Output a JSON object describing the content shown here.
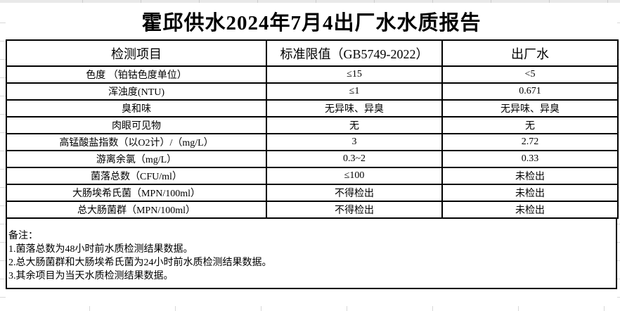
{
  "title": "霍邱供水2024年7月4出厂水水质报告",
  "table": {
    "columns": [
      "检测项目",
      "标准限值（GB5749-2022）",
      "出厂水"
    ],
    "rows": [
      [
        "色度 （铂钴色度单位）",
        "≤15",
        "<5"
      ],
      [
        "浑浊度(NTU)",
        "≤1",
        "0.671"
      ],
      [
        "臭和味",
        "无异味、异臭",
        "无异味、异臭"
      ],
      [
        "肉眼可见物",
        "无",
        "无"
      ],
      [
        "高锰酸盐指数（以O2计）/（mg/L）",
        "3",
        "2.72"
      ],
      [
        "游离余氯（mg/L）",
        "0.3~2",
        "0.33"
      ],
      [
        "菌落总数（CFU/ml）",
        "≤100",
        "未检出"
      ],
      [
        "大肠埃希氏菌（MPN/100ml）",
        "不得检出",
        "未检出"
      ],
      [
        "总大肠菌群（MPN/100ml）",
        "不得检出",
        "未检出"
      ]
    ]
  },
  "notes": {
    "label": "备注：",
    "items": [
      "1.菌落总数为48小时前水质检测结果数据。",
      "2.总大肠菌群和大肠埃希氏菌为24小时前水质检测结果数据。",
      "3.其余项目为当天水质检测结果数据。"
    ]
  }
}
